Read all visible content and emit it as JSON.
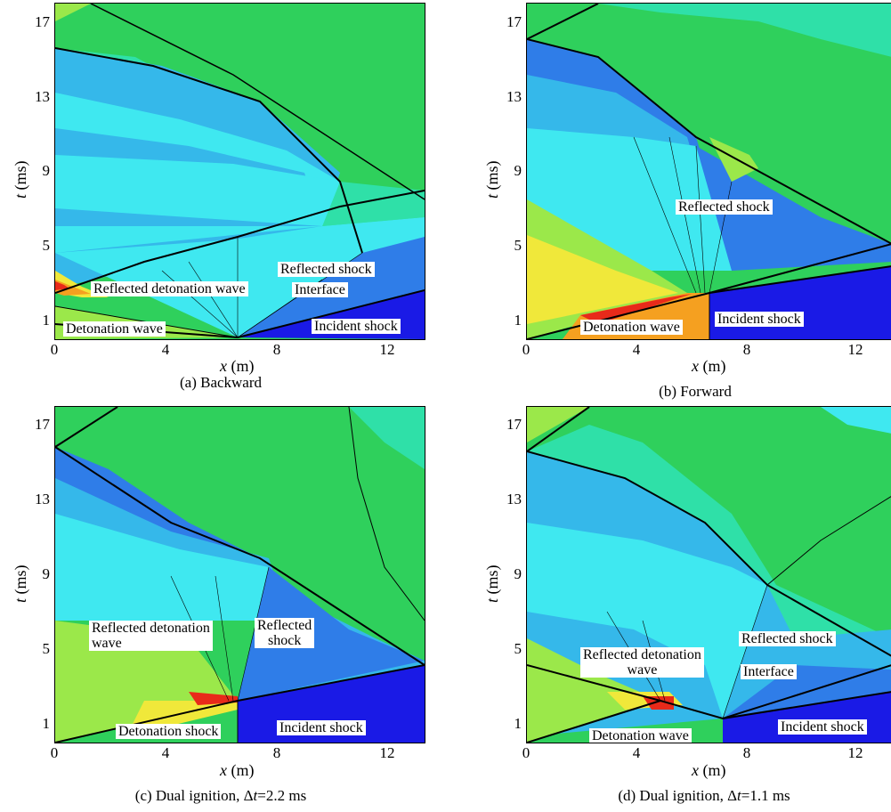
{
  "colors": {
    "deep_blue": "#1a1ae6",
    "mid_blue": "#2f7de8",
    "light_blue": "#35b8ea",
    "cyan": "#3fe8f0",
    "aqua": "#2fe0a8",
    "green": "#2fd05c",
    "lime": "#9be84a",
    "yellow": "#f0e83a",
    "orange": "#f5a020",
    "red": "#e82a1a"
  },
  "axes": {
    "x_symbol": "x",
    "x_unit": " (m)",
    "y_symbol": "t",
    "y_unit": " (ms)",
    "x_ticks": [
      "0",
      "4",
      "8",
      "12"
    ],
    "y_ticks": [
      "17",
      "13",
      "9",
      "5",
      "1"
    ]
  },
  "panels": [
    {
      "id": "a",
      "caption": "(a) Backward",
      "labels": {
        "reflected_shock": "Reflected shock",
        "reflected_detonation_wave": "Reflected detonation wave",
        "interface": "Interface",
        "detonation_wave": "Detonation wave",
        "incident_shock": "Incident shock"
      }
    },
    {
      "id": "b",
      "caption": "(b) Forward",
      "labels": {
        "reflected_shock": "Reflected shock",
        "detonation_wave": "Detonation wave",
        "incident_shock": "Incident shock"
      }
    },
    {
      "id": "c",
      "caption_prefix": "(c) Dual ignition, Δ",
      "caption_var": "t",
      "caption_suffix": "=2.2 ms",
      "labels": {
        "reflected_detonation_wave_1": "Reflected detonation",
        "reflected_detonation_wave_2": "wave",
        "reflected_shock_1": "Reflected",
        "reflected_shock_2": "shock",
        "detonation_shock": "Detonation shock",
        "incident_shock": "Incident shock"
      }
    },
    {
      "id": "d",
      "caption_prefix": "(d) Dual ignition, Δ",
      "caption_var": "t",
      "caption_suffix": "=1.1 ms",
      "labels": {
        "reflected_detonation_wave_1": "Reflected detonation",
        "reflected_detonation_wave_2": "wave",
        "reflected_shock": "Reflected shock",
        "interface": "Interface",
        "detonation_wave": "Detonation wave",
        "incident_shock": "Incident shock"
      }
    }
  ]
}
